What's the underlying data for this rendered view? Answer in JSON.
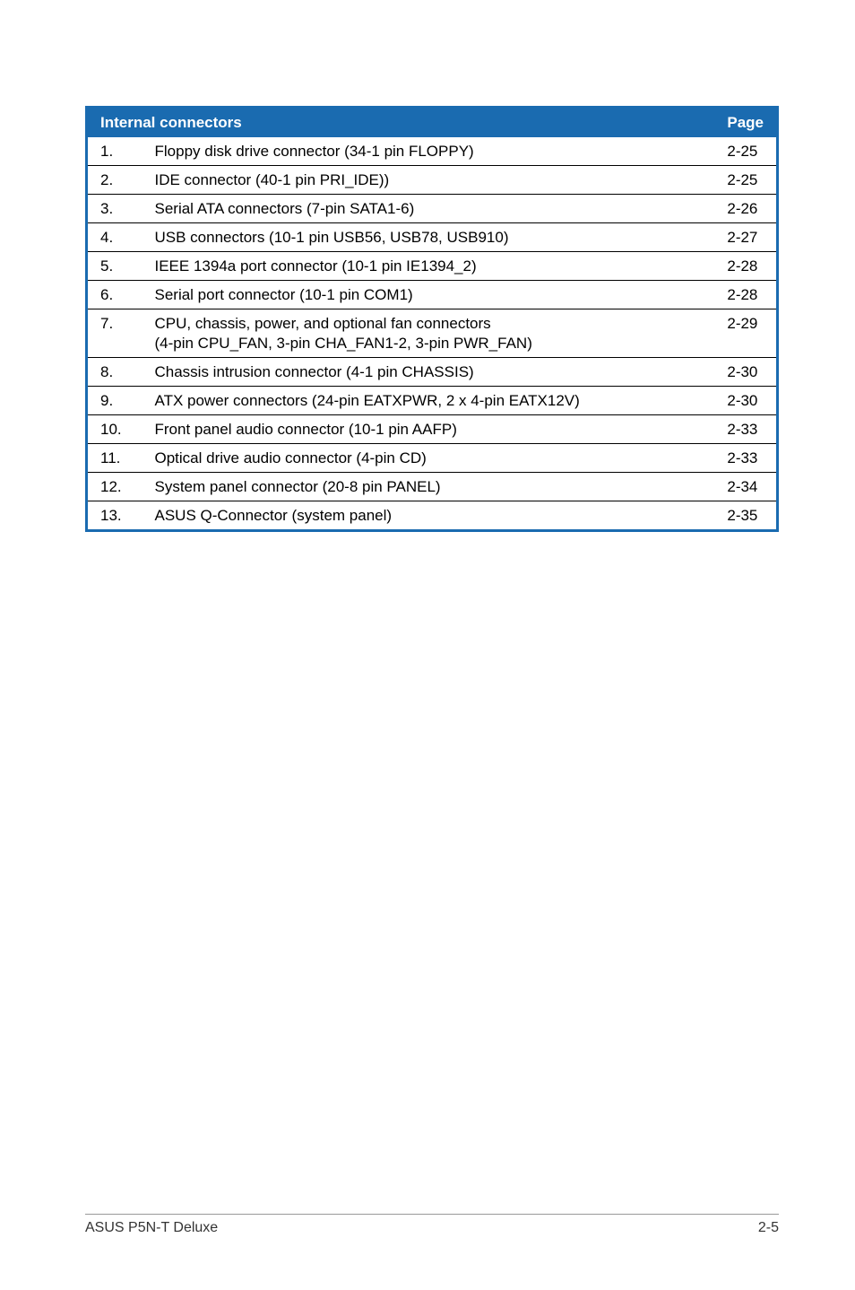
{
  "table": {
    "header": {
      "title": "Internal connectors",
      "page_label": "Page"
    },
    "header_bg_color": "#1a6bb0",
    "header_text_color": "#ffffff",
    "border_color": "#1a6bb0",
    "row_border_color": "#000000",
    "font_size": 17,
    "rows": [
      {
        "num": "1.",
        "desc": "Floppy disk drive connector (34-1 pin FLOPPY)",
        "sub": "",
        "page": "2-25"
      },
      {
        "num": "2.",
        "desc": "IDE connector (40-1 pin PRI_IDE))",
        "sub": "",
        "page": "2-25"
      },
      {
        "num": "3.",
        "desc": "Serial ATA connectors (7-pin SATA1-6)",
        "sub": "",
        "page": "2-26"
      },
      {
        "num": "4.",
        "desc": "USB connectors  (10-1 pin USB56, USB78, USB910)",
        "sub": "",
        "page": "2-27"
      },
      {
        "num": "5.",
        "desc": "IEEE 1394a port connector (10-1 pin IE1394_2)",
        "sub": "",
        "page": "2-28"
      },
      {
        "num": "6.",
        "desc": "Serial port connector (10-1 pin COM1)",
        "sub": "",
        "page": "2-28"
      },
      {
        "num": "7.",
        "desc": "CPU, chassis, power, and optional fan connectors",
        "sub": "(4-pin CPU_FAN, 3-pin CHA_FAN1-2, 3-pin PWR_FAN)",
        "page": "2-29"
      },
      {
        "num": "8.",
        "desc": "Chassis intrusion connector (4-1 pin CHASSIS)",
        "sub": "",
        "page": "2-30"
      },
      {
        "num": "9.",
        "desc": "ATX power connectors (24-pin EATXPWR, 2 x 4-pin EATX12V)",
        "sub": "",
        "page": "2-30"
      },
      {
        "num": "10.",
        "desc": "Front panel audio connector (10-1 pin AAFP)",
        "sub": "",
        "page": "2-33"
      },
      {
        "num": "11.",
        "desc": "Optical drive audio connector (4-pin CD)",
        "sub": "",
        "page": "2-33"
      },
      {
        "num": "12.",
        "desc": "System panel connector (20-8 pin PANEL)",
        "sub": "",
        "page": "2-34"
      },
      {
        "num": "13.",
        "desc": "ASUS Q-Connector (system panel)",
        "sub": "",
        "page": "2-35"
      }
    ]
  },
  "footer": {
    "left": "ASUS P5N-T Deluxe",
    "right": "2-5"
  }
}
